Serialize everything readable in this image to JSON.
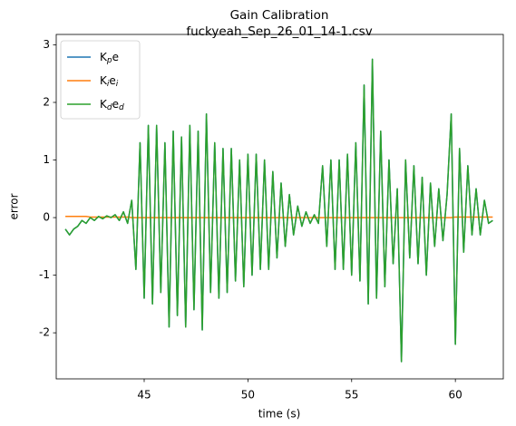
{
  "chart_data": {
    "type": "line",
    "title": "Gain Calibration",
    "subtitle": "fuckyeah_Sep_26_01_14-1.csv",
    "xlabel": "time (s)",
    "ylabel": "error",
    "xlim": [
      40.76,
      62.31
    ],
    "ylim": [
      -2.8,
      3.18
    ],
    "xticks": [
      45,
      50,
      55,
      60
    ],
    "yticks": [
      -2,
      -1,
      0,
      1,
      2,
      3
    ],
    "legend": "upper left",
    "x": [
      41.2,
      41.4,
      41.6,
      41.8,
      42.0,
      42.2,
      42.4,
      42.6,
      42.8,
      43.0,
      43.2,
      43.4,
      43.6,
      43.8,
      44.0,
      44.2,
      44.4,
      44.6,
      44.8,
      45.0,
      45.2,
      45.4,
      45.6,
      45.8,
      46.0,
      46.2,
      46.4,
      46.6,
      46.8,
      47.0,
      47.2,
      47.4,
      47.6,
      47.8,
      48.0,
      48.2,
      48.4,
      48.6,
      48.8,
      49.0,
      49.2,
      49.4,
      49.6,
      49.8,
      50.0,
      50.2,
      50.4,
      50.6,
      50.8,
      51.0,
      51.2,
      51.4,
      51.6,
      51.8,
      52.0,
      52.2,
      52.4,
      52.6,
      52.8,
      53.0,
      53.2,
      53.4,
      53.6,
      53.8,
      54.0,
      54.2,
      54.4,
      54.6,
      54.8,
      55.0,
      55.2,
      55.4,
      55.6,
      55.8,
      56.0,
      56.2,
      56.4,
      56.6,
      56.8,
      57.0,
      57.2,
      57.4,
      57.6,
      57.8,
      58.0,
      58.2,
      58.4,
      58.6,
      58.8,
      59.0,
      59.2,
      59.4,
      59.6,
      59.8,
      60.0,
      60.2,
      60.4,
      60.6,
      60.8,
      61.0,
      61.2,
      61.4,
      61.6,
      61.8
    ],
    "series": [
      {
        "name": "K$_p$e",
        "color": "#1f77b4",
        "values": [
          -0.2,
          -0.3,
          -0.2,
          -0.15,
          -0.05,
          -0.1,
          0.0,
          -0.05,
          0.02,
          -0.02,
          0.03,
          0.0,
          0.05,
          -0.05,
          0.1,
          -0.1,
          0.3,
          -0.9,
          1.3,
          -1.4,
          1.6,
          -1.5,
          1.6,
          -1.3,
          1.3,
          -1.9,
          1.5,
          -1.7,
          1.4,
          -1.9,
          1.6,
          -1.6,
          1.5,
          -1.95,
          1.8,
          -1.3,
          1.3,
          -1.4,
          1.2,
          -1.3,
          1.2,
          -1.1,
          1.0,
          -1.2,
          1.1,
          -1.0,
          1.1,
          -0.9,
          1.0,
          -0.9,
          0.8,
          -0.7,
          0.6,
          -0.5,
          0.4,
          -0.3,
          0.2,
          -0.15,
          0.1,
          -0.1,
          0.05,
          -0.1,
          0.9,
          -0.5,
          1.0,
          -0.9,
          1.0,
          -0.9,
          1.1,
          -1.0,
          1.3,
          -1.1,
          2.3,
          -1.5,
          2.75,
          -1.4,
          1.5,
          -1.2,
          1.0,
          -0.8,
          0.5,
          -2.5,
          1.0,
          -0.7,
          0.9,
          -0.8,
          0.7,
          -1.0,
          0.6,
          -0.5,
          0.5,
          -0.4,
          0.4,
          1.8,
          -2.2,
          1.2,
          -0.6,
          0.9,
          -0.3,
          0.5,
          -0.3,
          0.3,
          -0.1,
          -0.05
        ]
      },
      {
        "name": "K$_i$e$_i$",
        "color": "#ff7f0e",
        "values": [
          0.02,
          0.02,
          0.02,
          0.02,
          0.02,
          0.02,
          0.01,
          0.01,
          0.01,
          0.01,
          0.01,
          0.01,
          0.01,
          0.01,
          0.01,
          0.01,
          0.0,
          0.0,
          0.0,
          0.0,
          0.0,
          0.0,
          0.0,
          0.0,
          0.0,
          0.0,
          0.0,
          0.0,
          0.0,
          0.0,
          0.0,
          0.0,
          0.0,
          0.0,
          0.0,
          0.0,
          0.0,
          0.0,
          0.0,
          0.0,
          0.0,
          0.0,
          0.0,
          0.0,
          0.0,
          0.0,
          0.0,
          0.0,
          0.0,
          0.0,
          0.0,
          0.0,
          0.0,
          0.0,
          0.0,
          0.0,
          0.0,
          0.0,
          0.0,
          0.0,
          0.0,
          0.0,
          0.0,
          0.0,
          0.0,
          0.0,
          0.0,
          0.0,
          0.0,
          0.0,
          0.0,
          0.0,
          0.0,
          0.0,
          0.0,
          0.0,
          0.0,
          0.0,
          0.0,
          0.0,
          0.0,
          0.0,
          0.0,
          0.0,
          0.0,
          0.0,
          0.0,
          0.0,
          0.0,
          0.0,
          0.0,
          0.0,
          0.0,
          0.0,
          0.01,
          0.01,
          0.01,
          0.01,
          0.01,
          0.01,
          0.01,
          0.01,
          0.01,
          0.01
        ]
      },
      {
        "name": "K$_d$e$_d$",
        "color": "#2ca02c",
        "values": [
          -0.2,
          -0.3,
          -0.2,
          -0.15,
          -0.05,
          -0.1,
          0.0,
          -0.05,
          0.02,
          -0.02,
          0.03,
          0.0,
          0.05,
          -0.05,
          0.1,
          -0.1,
          0.3,
          -0.9,
          1.3,
          -1.4,
          1.6,
          -1.5,
          1.6,
          -1.3,
          1.3,
          -1.9,
          1.5,
          -1.7,
          1.4,
          -1.9,
          1.6,
          -1.6,
          1.5,
          -1.95,
          1.8,
          -1.3,
          1.3,
          -1.4,
          1.2,
          -1.3,
          1.2,
          -1.1,
          1.0,
          -1.2,
          1.1,
          -1.0,
          1.1,
          -0.9,
          1.0,
          -0.9,
          0.8,
          -0.7,
          0.6,
          -0.5,
          0.4,
          -0.3,
          0.2,
          -0.15,
          0.1,
          -0.1,
          0.05,
          -0.1,
          0.9,
          -0.5,
          1.0,
          -0.9,
          1.0,
          -0.9,
          1.1,
          -1.0,
          1.3,
          -1.1,
          2.3,
          -1.5,
          2.75,
          -1.4,
          1.5,
          -1.2,
          1.0,
          -0.8,
          0.5,
          -2.5,
          1.0,
          -0.7,
          0.9,
          -0.8,
          0.7,
          -1.0,
          0.6,
          -0.5,
          0.5,
          -0.4,
          0.4,
          1.8,
          -2.2,
          1.2,
          -0.6,
          0.9,
          -0.3,
          0.5,
          -0.3,
          0.3,
          -0.1,
          -0.05
        ]
      }
    ]
  }
}
